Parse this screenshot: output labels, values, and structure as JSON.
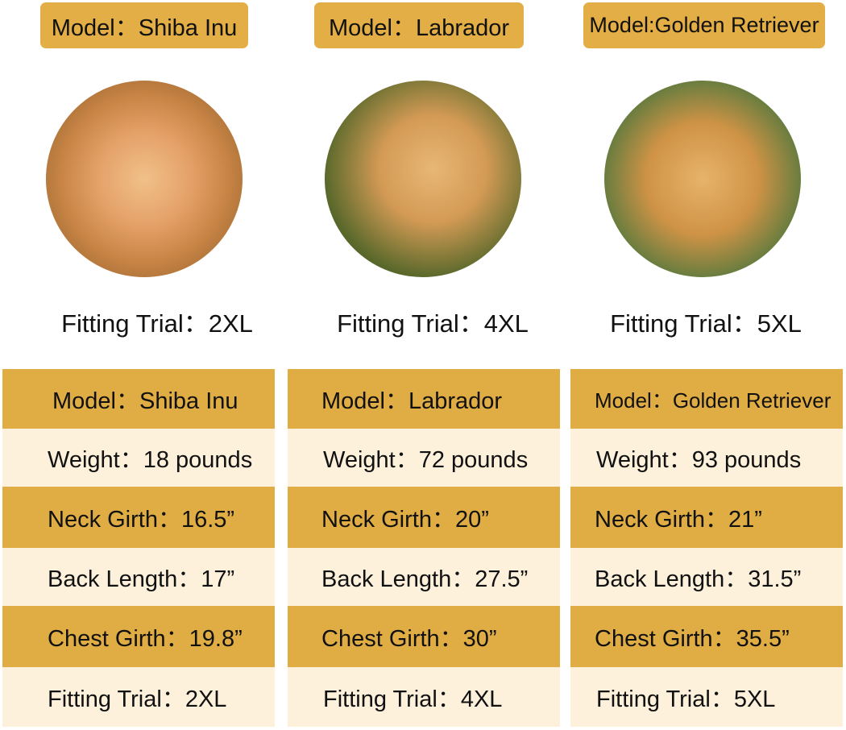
{
  "accent_color": "#E0AD44",
  "cream_color": "#FDF1DC",
  "dogs": [
    {
      "badge": "Model：Shiba Inu",
      "photo": "shiba-inu-photo",
      "fitting": "Fitting Trial：2XL",
      "rows": [
        "Model：Shiba Inu",
        "Weight：18 pounds",
        "Neck Girth：16.5”",
        "Back Length：17”",
        "Chest Girth：19.8”",
        "Fitting Trial：2XL"
      ]
    },
    {
      "badge": "Model：Labrador",
      "photo": "labrador-photo",
      "fitting": "Fitting Trial：4XL",
      "rows": [
        "Model：Labrador",
        "Weight：72 pounds",
        "Neck Girth：20”",
        "Back Length：27.5”",
        "Chest Girth：30”",
        "Fitting Trial：4XL"
      ]
    },
    {
      "badge": "Model:Golden Retriever",
      "photo": "golden-retriever-photo",
      "fitting": "Fitting Trial：5XL",
      "rows": [
        "Model：Golden Retriever",
        "Weight：93 pounds",
        "Neck Girth：21”",
        "Back Length：31.5”",
        "Chest Girth：35.5”",
        "Fitting Trial：5XL"
      ]
    }
  ]
}
